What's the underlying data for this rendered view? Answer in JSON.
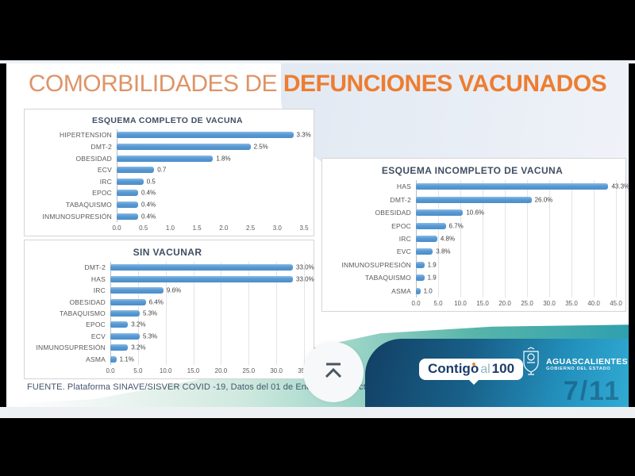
{
  "slide": {
    "title": {
      "light": "COMORBILIDADES DE ",
      "bold": "DEFUNCIONES VACUNADOS"
    },
    "footer_source": "FUENTE. Plataforma SINAVE/SISVER COVID -19, Datos del 01 de Enero a 02 de octubre de 2021",
    "page_number": "7/11",
    "scroll_button_icon": "chevron-up-to-line",
    "logos": {
      "contigo": {
        "part1": "Contigo",
        "part2": "al",
        "part3": "100"
      },
      "state": {
        "name": "AGUASCALIENTES",
        "subtitle": "GOBIERNO DEL ESTADO"
      }
    },
    "colors": {
      "title_light": "#DE9468",
      "title_bold": "#ED7D31",
      "bar_blue": "#5B9BD5",
      "chart_title": "#3F4E63",
      "banner_navy": "#123F63",
      "banner_cyan": "#31ABD3",
      "teal_swoosh": "#2FA0AE"
    }
  },
  "chart_data": [
    {
      "type": "bar",
      "orientation": "horizontal",
      "title": "ESQUEMA COMPLETO DE VACUNA",
      "categories": [
        "HIPERTENSION",
        "DMT-2",
        "OBESIDAD",
        "ECV",
        "IRC",
        "EPOC",
        "TABAQUISMO",
        "INMUNOSUPRESIÓN"
      ],
      "values": [
        3.3,
        2.5,
        1.8,
        0.7,
        0.5,
        0.4,
        0.4,
        0.4
      ],
      "value_labels": [
        "3.3%",
        "2.5%",
        "1.8%",
        "0.7",
        "0.5",
        "0.4%",
        "0.4%",
        "0.4%"
      ],
      "xlim": [
        0,
        3.5
      ],
      "xticks": [
        "0.0",
        "0.5",
        "1.0",
        "1.5",
        "2.0",
        "2.5",
        "3.0",
        "3.5"
      ],
      "grid": false,
      "legend": "none"
    },
    {
      "type": "bar",
      "orientation": "horizontal",
      "title": "SIN VACUNAR",
      "categories": [
        "DMT-2",
        "HAS",
        "IRC",
        "OBESIDAD",
        "TABAQUISMO",
        "EPOC",
        "ECV",
        "INMUNOSUPRESIÓN",
        "ASMA"
      ],
      "values": [
        33.0,
        33.0,
        9.6,
        6.4,
        5.3,
        3.2,
        5.3,
        3.2,
        1.1
      ],
      "value_labels": [
        "33.0%",
        "33.0%",
        "9.6%",
        "6.4%",
        "5.3%",
        "3.2%",
        "5.3%",
        "3.2%",
        "1.1%"
      ],
      "xlim": [
        0,
        35
      ],
      "xticks": [
        "0.0",
        "5.0",
        "10.0",
        "15.0",
        "20.0",
        "25.0",
        "30.0",
        "35.0"
      ],
      "grid": true,
      "legend": "none"
    },
    {
      "type": "bar",
      "orientation": "horizontal",
      "title": "ESQUEMA INCOMPLETO DE VACUNA",
      "categories": [
        "HAS",
        "DMT-2",
        "OBESIDAD",
        "EPOC",
        "IRC",
        "EVC",
        "INMUNOSUPRESIÓN",
        "TABAQUISMO",
        "ASMA"
      ],
      "values": [
        43.3,
        26.0,
        10.6,
        6.7,
        4.8,
        3.8,
        1.9,
        1.9,
        1.0
      ],
      "value_labels": [
        "43.3%",
        "26.0%",
        "10.6%",
        "6.7%",
        "4.8%",
        "3.8%",
        "1.9",
        "1.9",
        "1.0"
      ],
      "xlim": [
        0,
        45
      ],
      "xticks": [
        "0.0",
        "5.0",
        "10.0",
        "15.0",
        "20.0",
        "25.0",
        "30.0",
        "35.0",
        "40.0",
        "45.0"
      ],
      "grid": true,
      "legend": "none"
    }
  ]
}
